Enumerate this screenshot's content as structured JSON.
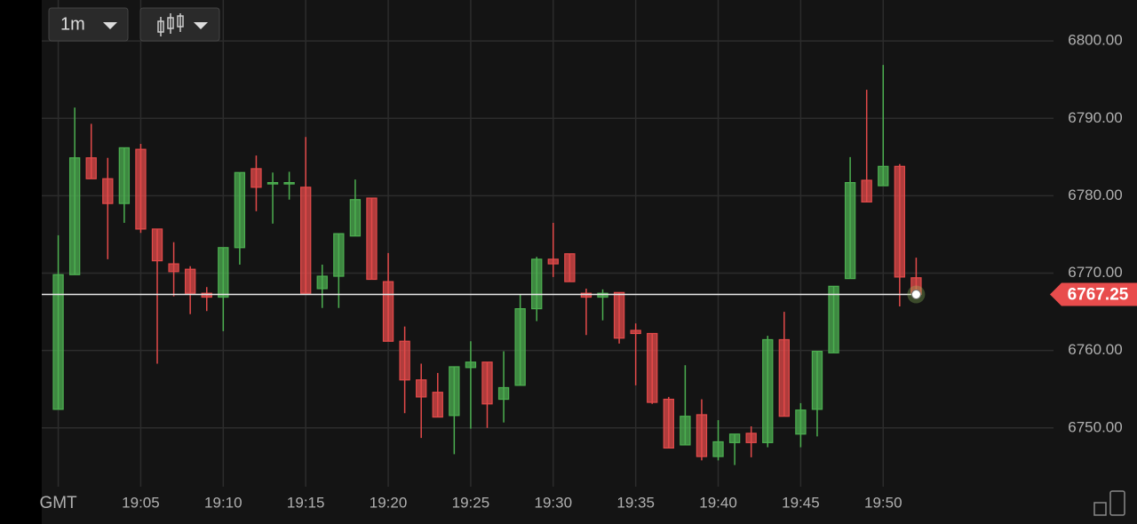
{
  "chart_data": {
    "type": "candlestick",
    "interval": "1m",
    "x": [
      "19:00",
      "19:01",
      "19:02",
      "19:03",
      "19:04",
      "19:05",
      "19:06",
      "19:07",
      "19:08",
      "19:09",
      "19:10",
      "19:11",
      "19:12",
      "19:13",
      "19:14",
      "19:15",
      "19:16",
      "19:17",
      "19:18",
      "19:19",
      "19:20",
      "19:21",
      "19:22",
      "19:23",
      "19:24",
      "19:25",
      "19:26",
      "19:27",
      "19:28",
      "19:29",
      "19:30",
      "19:31",
      "19:32",
      "19:33",
      "19:34",
      "19:35",
      "19:36",
      "19:37",
      "19:38",
      "19:39",
      "19:40",
      "19:41",
      "19:42",
      "19:43",
      "19:44",
      "19:45",
      "19:46",
      "19:47",
      "19:48",
      "19:49",
      "19:50",
      "19:51",
      "19:52"
    ],
    "open": [
      6752.4,
      6769.8,
      6784.9,
      6782.2,
      6779.0,
      6786.0,
      6775.7,
      6771.2,
      6770.5,
      6767.4,
      6766.9,
      6773.3,
      6783.5,
      6781.6,
      6781.6,
      6781.1,
      6768.0,
      6769.6,
      6774.8,
      6779.7,
      6768.9,
      6761.2,
      6756.2,
      6754.6,
      6751.6,
      6757.8,
      6758.5,
      6753.7,
      6755.5,
      6765.4,
      6771.8,
      6772.5,
      6767.4,
      6766.9,
      6767.5,
      6762.6,
      6762.2,
      6753.7,
      6747.8,
      6751.7,
      6746.3,
      6748.1,
      6749.3,
      6748.1,
      6761.4,
      6749.2,
      6752.4,
      6759.7,
      6769.3,
      6782.0,
      6781.3,
      6783.8,
      6769.4
    ],
    "high": [
      6774.9,
      6791.4,
      6789.3,
      6784.9,
      6786.2,
      6786.7,
      6775.7,
      6774.0,
      6770.9,
      6768.2,
      6773.3,
      6783.0,
      6785.2,
      6783.0,
      6783.1,
      6787.6,
      6771.1,
      6775.1,
      6782.1,
      6779.7,
      6772.6,
      6763.1,
      6758.3,
      6757.1,
      6757.9,
      6761.2,
      6758.5,
      6759.9,
      6767.2,
      6772.1,
      6776.5,
      6772.5,
      6768.0,
      6767.9,
      6767.5,
      6763.5,
      6762.2,
      6754.0,
      6758.1,
      6753.7,
      6751.0,
      6749.2,
      6750.2,
      6761.9,
      6765.0,
      6753.2,
      6759.9,
      6768.3,
      6785.0,
      6793.7,
      6796.9,
      6784.1,
      6772.0
    ],
    "low": [
      6752.4,
      6769.8,
      6782.2,
      6771.8,
      6776.5,
      6775.2,
      6758.3,
      6767.0,
      6764.7,
      6765.1,
      6762.5,
      6771.1,
      6778.0,
      6776.4,
      6779.5,
      6767.4,
      6765.5,
      6765.5,
      6774.8,
      6769.2,
      6761.2,
      6751.9,
      6748.7,
      6751.4,
      6746.6,
      6749.9,
      6750.0,
      6750.7,
      6755.5,
      6763.8,
      6769.5,
      6768.9,
      6762.0,
      6763.9,
      6760.9,
      6755.5,
      6753.1,
      6747.4,
      6747.8,
      6745.8,
      6745.8,
      6745.2,
      6746.2,
      6747.5,
      6751.5,
      6747.5,
      6748.9,
      6759.7,
      6769.3,
      6779.2,
      6781.3,
      6765.7,
      6767.25
    ],
    "close": [
      6769.8,
      6784.9,
      6782.2,
      6779.0,
      6786.2,
      6775.7,
      6771.6,
      6770.2,
      6767.4,
      6766.9,
      6773.3,
      6783.0,
      6781.1,
      6781.7,
      6781.7,
      6767.4,
      6769.6,
      6775.1,
      6779.5,
      6769.2,
      6761.2,
      6756.2,
      6754.0,
      6751.4,
      6757.9,
      6758.5,
      6753.1,
      6755.2,
      6765.4,
      6771.8,
      6771.2,
      6768.9,
      6766.9,
      6767.4,
      6761.6,
      6762.2,
      6753.3,
      6747.4,
      6751.5,
      6746.3,
      6748.2,
      6749.2,
      6748.1,
      6761.4,
      6751.5,
      6752.3,
      6759.9,
      6768.3,
      6781.7,
      6779.2,
      6783.8,
      6769.5,
      6767.25
    ],
    "up_color": "#4caf50",
    "down_color": "#e34a4a",
    "last_price": 6767.25,
    "xlim": [
      "18:59",
      "20:00"
    ],
    "xticks": [
      {
        "value": "19:00",
        "label": "GMT"
      },
      "19:05",
      "19:10",
      "19:15",
      "19:20",
      "19:25",
      "19:30",
      "19:35",
      "19:40",
      "19:45",
      "19:50"
    ],
    "ylim": [
      6742.4,
      6805.3
    ],
    "yticks": [
      {
        "value": 6750,
        "label": "6750.00"
      },
      {
        "value": 6760,
        "label": "6760.00"
      },
      {
        "value": 6770,
        "label": "6770.00"
      },
      {
        "value": 6780,
        "label": "6780.00"
      },
      {
        "value": 6790,
        "label": "6790.00"
      },
      {
        "value": 6800,
        "label": "6800.00"
      }
    ],
    "grid": true
  }
}
